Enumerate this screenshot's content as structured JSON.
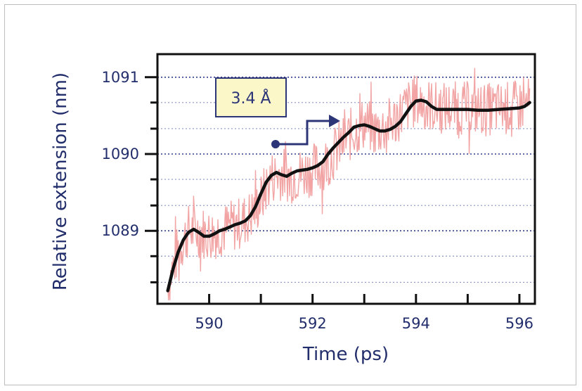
{
  "chart_data": {
    "type": "line",
    "xlabel": "Time (ps)",
    "ylabel": "Relative extension (nm)",
    "xlim": [
      589.0,
      596.3
    ],
    "ylim": [
      1088.05,
      1091.3
    ],
    "x_ticks": [
      590,
      592,
      594,
      596
    ],
    "x_minor_ticks": [
      591,
      593,
      595
    ],
    "y_ticks": [
      1089,
      1090,
      1091
    ],
    "y_minor_ticks": [
      1088.33,
      1088.67,
      1089.33,
      1089.67,
      1090.33,
      1090.67
    ],
    "grid": "horizontal dotted",
    "series": [
      {
        "color": "#f2a4a4",
        "noise_amplitude": 0.35,
        "x": [
          589.2,
          589.4,
          589.6,
          589.8,
          590.0,
          590.2,
          590.4,
          590.6,
          590.8,
          591.0,
          591.2,
          591.4,
          591.6,
          591.8,
          592.0,
          592.2,
          592.4,
          592.6,
          592.8,
          593.0,
          593.2,
          593.4,
          593.6,
          593.8,
          594.0,
          594.2,
          594.4,
          594.6,
          594.8,
          595.0,
          595.2,
          595.4,
          595.6,
          595.8,
          596.0,
          596.2
        ],
        "y": [
          1088.3,
          1088.75,
          1089.0,
          1089.0,
          1088.95,
          1089.0,
          1089.05,
          1089.1,
          1089.2,
          1089.4,
          1089.7,
          1089.75,
          1089.7,
          1089.75,
          1089.8,
          1089.85,
          1090.0,
          1090.15,
          1090.3,
          1090.4,
          1090.3,
          1090.35,
          1090.45,
          1090.6,
          1090.7,
          1090.65,
          1090.6,
          1090.6,
          1090.6,
          1090.6,
          1090.58,
          1090.58,
          1090.6,
          1090.6,
          1090.62,
          1090.65
        ]
      },
      {
        "color": "#111111",
        "x": [
          589.2,
          589.3,
          589.4,
          589.5,
          589.6,
          589.7,
          589.8,
          589.9,
          590.0,
          590.1,
          590.2,
          590.3,
          590.4,
          590.5,
          590.6,
          590.7,
          590.8,
          590.9,
          591.0,
          591.1,
          591.2,
          591.3,
          591.4,
          591.5,
          591.6,
          591.7,
          591.8,
          591.9,
          592.0,
          592.1,
          592.2,
          592.3,
          592.4,
          592.5,
          592.6,
          592.7,
          592.8,
          592.9,
          593.0,
          593.1,
          593.2,
          593.3,
          593.4,
          593.5,
          593.6,
          593.7,
          593.8,
          593.9,
          594.0,
          594.1,
          594.2,
          594.3,
          594.4,
          594.6,
          594.8,
          595.0,
          595.2,
          595.4,
          595.6,
          595.8,
          596.0,
          596.1,
          596.2
        ],
        "y": [
          1088.22,
          1088.5,
          1088.72,
          1088.88,
          1088.98,
          1089.02,
          1088.98,
          1088.93,
          1088.93,
          1088.96,
          1089.0,
          1089.02,
          1089.05,
          1089.08,
          1089.1,
          1089.13,
          1089.2,
          1089.32,
          1089.48,
          1089.63,
          1089.72,
          1089.76,
          1089.73,
          1089.71,
          1089.75,
          1089.78,
          1089.79,
          1089.8,
          1089.82,
          1089.85,
          1089.9,
          1090.0,
          1090.08,
          1090.15,
          1090.22,
          1090.28,
          1090.35,
          1090.37,
          1090.38,
          1090.36,
          1090.33,
          1090.3,
          1090.3,
          1090.32,
          1090.36,
          1090.42,
          1090.52,
          1090.62,
          1090.69,
          1090.7,
          1090.68,
          1090.62,
          1090.58,
          1090.58,
          1090.58,
          1090.58,
          1090.57,
          1090.57,
          1090.58,
          1090.59,
          1090.6,
          1090.62,
          1090.67
        ]
      }
    ],
    "annotation": {
      "text": "3.4 Å",
      "box_fill": "#fbf7c9",
      "border_color": "#2c3577",
      "step_arrow_color": "#2c3577"
    }
  }
}
